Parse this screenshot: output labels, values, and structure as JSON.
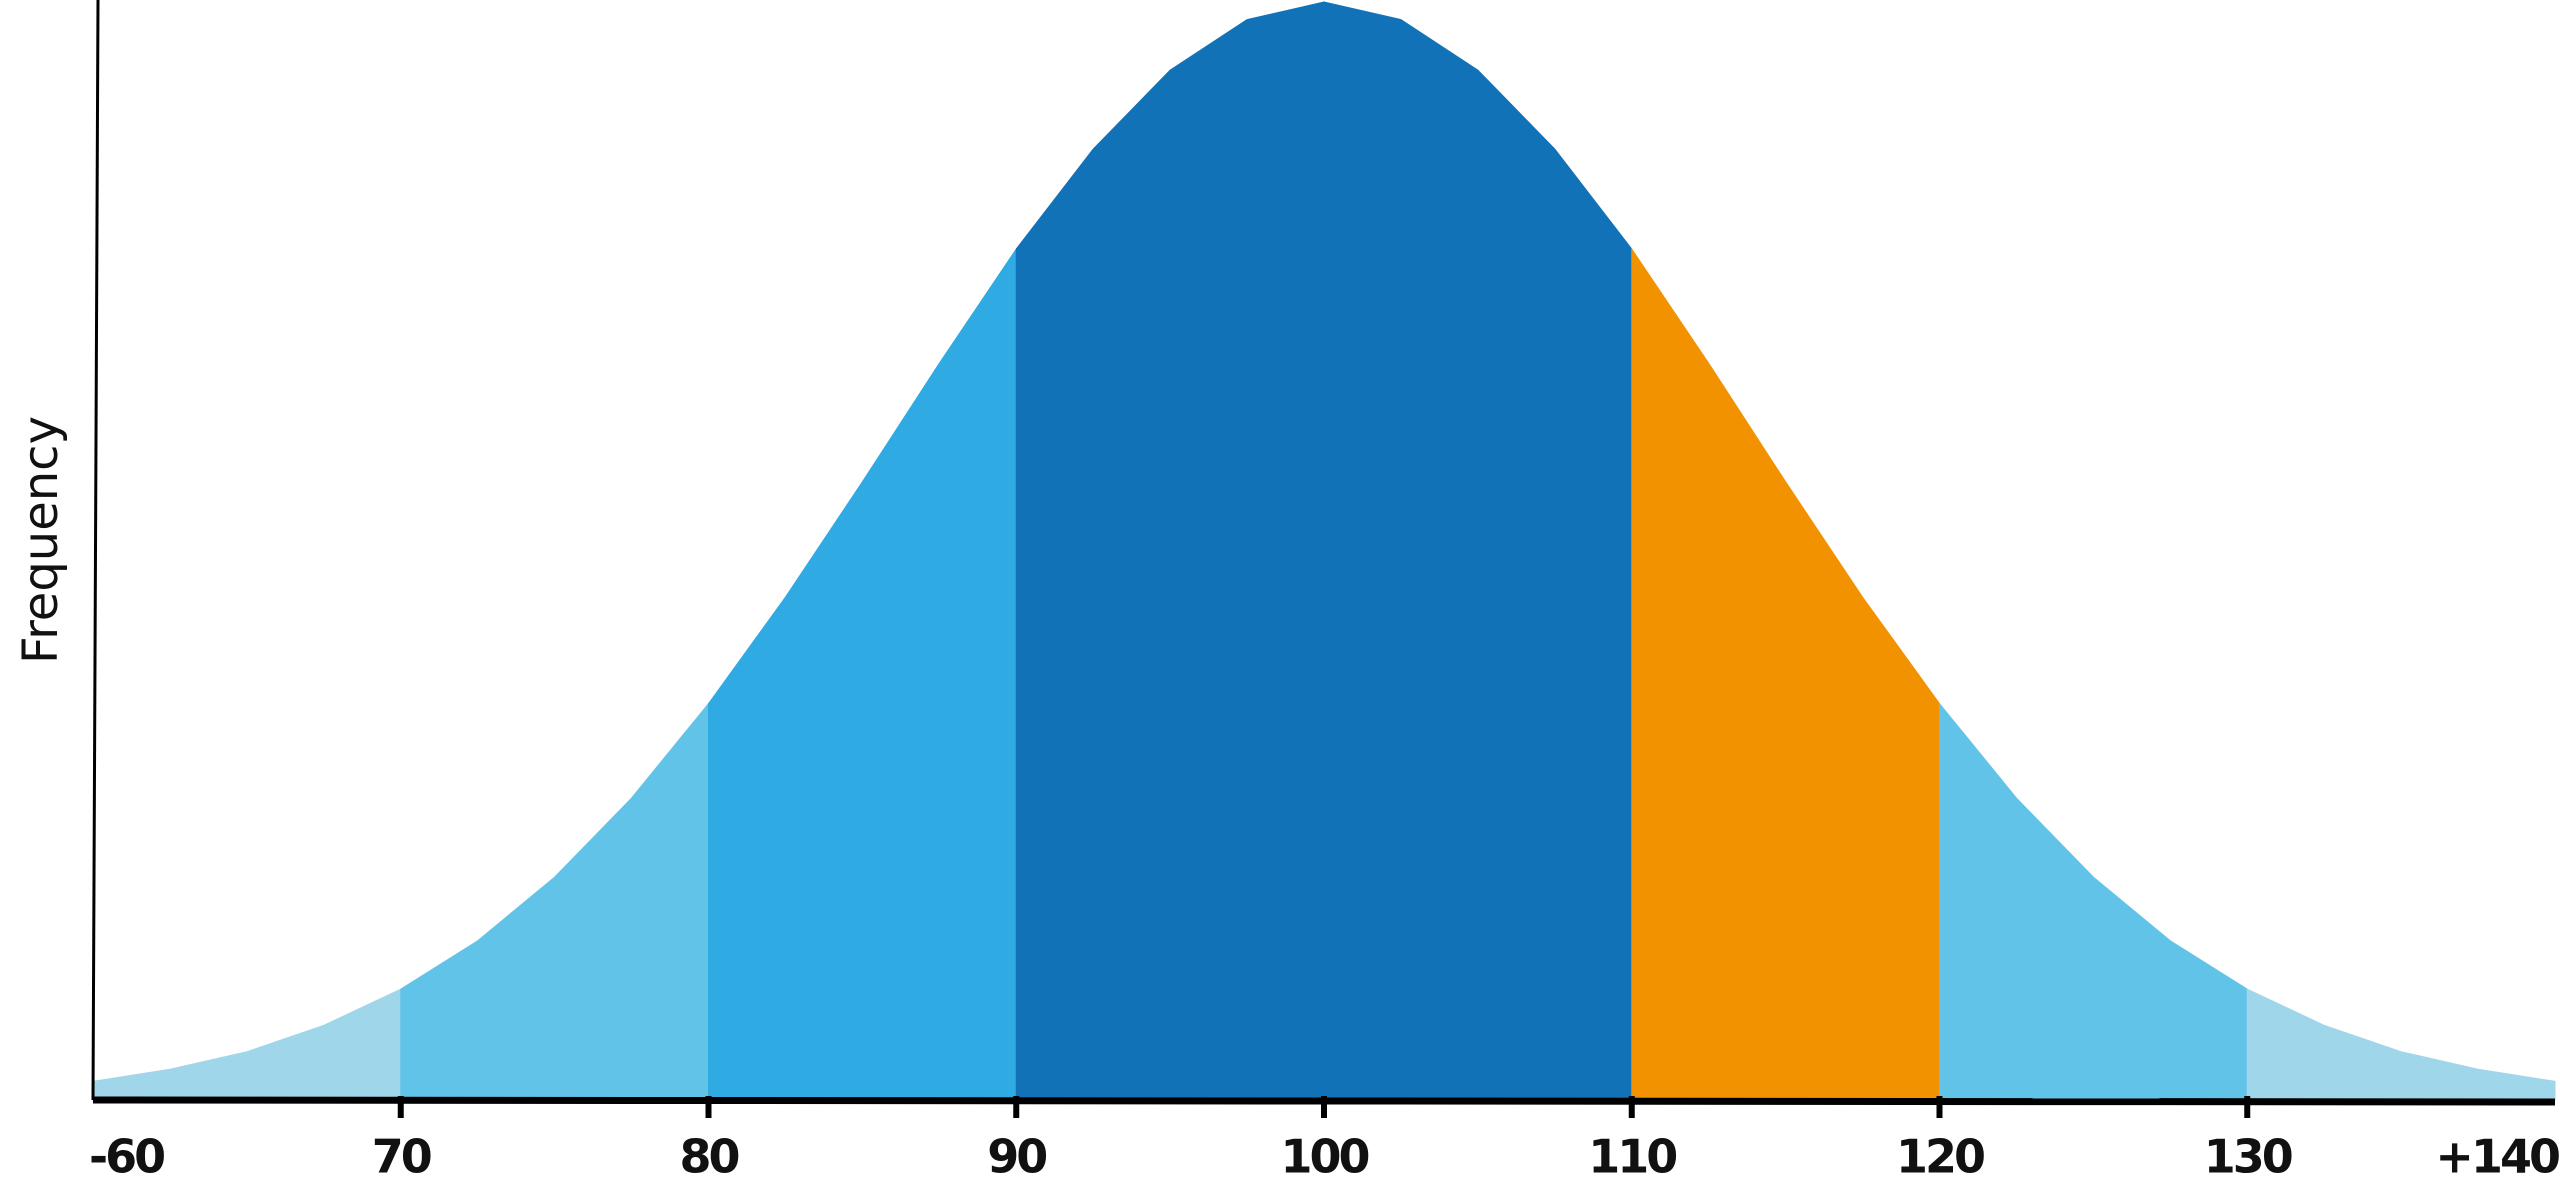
{
  "chart_data": {
    "type": "area",
    "y_label": "Frequency",
    "x": [
      60,
      62.5,
      65,
      67.5,
      70,
      72.5,
      75,
      77.5,
      80,
      82.5,
      85,
      87.5,
      90,
      92.5,
      95,
      97.5,
      100,
      102.5,
      105,
      107.5,
      110,
      112.5,
      115,
      117.5,
      120,
      122.5,
      125,
      127.5,
      130,
      132.5,
      135,
      137.5,
      140
    ],
    "values": [
      0.017,
      0.028,
      0.044,
      0.068,
      0.101,
      0.145,
      0.203,
      0.275,
      0.361,
      0.458,
      0.563,
      0.671,
      0.775,
      0.866,
      0.938,
      0.984,
      1,
      0.984,
      0.938,
      0.866,
      0.775,
      0.671,
      0.563,
      0.458,
      0.361,
      0.275,
      0.203,
      0.145,
      0.101,
      0.068,
      0.044,
      0.028,
      0.017
    ],
    "xlim": [
      60,
      140
    ],
    "ylim": [
      0,
      1
    ],
    "xticks": [
      {
        "value": 60,
        "label": "-60"
      },
      70,
      80,
      90,
      100,
      110,
      120,
      130,
      {
        "value": 140,
        "label": "+140"
      }
    ],
    "band_colors": [
      "#a0d6ea",
      "#62c3e8",
      "#30aae2",
      "#1272b8",
      "#1272b8",
      "#f29200",
      "#62c3e8",
      "#a0d6ea"
    ]
  }
}
